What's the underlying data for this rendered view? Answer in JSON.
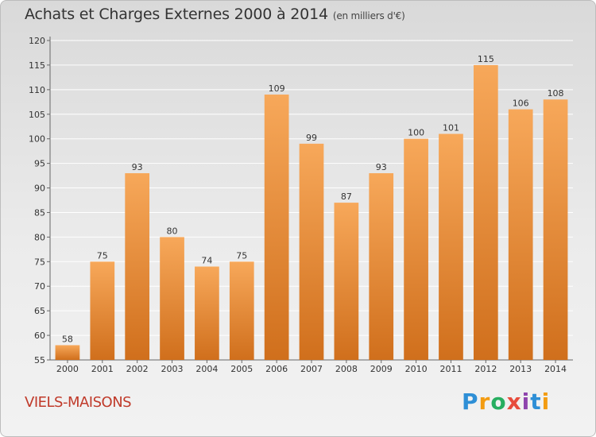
{
  "header": {
    "title": "Achats et Charges Externes 2000 à 2014",
    "unit": "(en milliers d'€)"
  },
  "footer": {
    "city": "VIELS-MAISONS"
  },
  "logo": {
    "text": "Proxiti",
    "letters": [
      "P",
      "r",
      "o",
      "x",
      "i",
      "t",
      "i"
    ],
    "colors": [
      "#2e8fd6",
      "#f39c12",
      "#27ae60",
      "#e74c3c",
      "#8e44ad",
      "#2e8fd6",
      "#f39c12"
    ]
  },
  "colors": {
    "bar_light": "#f7a85a",
    "bar_dark": "#d06f1c",
    "grid": "#ffffff",
    "axis_text": "#333333"
  },
  "chart_data": {
    "type": "bar",
    "title": "Achats et Charges Externes 2000 à 2014",
    "subtitle": "(en milliers d'€)",
    "xlabel": "",
    "ylabel": "",
    "categories": [
      "2000",
      "2001",
      "2002",
      "2003",
      "2004",
      "2005",
      "2006",
      "2007",
      "2008",
      "2009",
      "2010",
      "2011",
      "2012",
      "2013",
      "2014"
    ],
    "values": [
      58,
      75,
      93,
      80,
      74,
      75,
      109,
      99,
      87,
      93,
      100,
      101,
      115,
      106,
      108
    ],
    "ylim": [
      55,
      120
    ],
    "yticks": [
      55,
      60,
      65,
      70,
      75,
      80,
      85,
      90,
      95,
      100,
      105,
      110,
      115,
      120
    ],
    "grid": true,
    "data_labels": true
  }
}
